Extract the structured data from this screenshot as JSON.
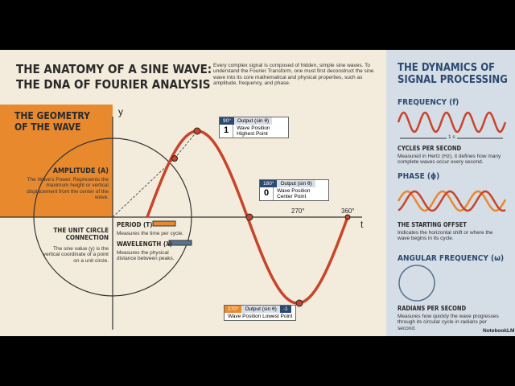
{
  "header": {
    "title_lines": [
      "THE ANATOMY OF A SINE WAVE:",
      "THE DNA OF FOURIER ANALYSIS"
    ],
    "intro": "Every complex signal is composed of hidden, simple sine waves. To understand the Fourier Transform, one must first deconstruct the sine wave into its core mathematical and physical properties, such as amplitude, frequency, and phase."
  },
  "geometry": {
    "title": "THE GEOMETRY OF THE WAVE",
    "axis_y": "y",
    "axis_t": "t",
    "amplitude": {
      "title": "AMPLITUDE (A)",
      "text": "The Wave's Power. Represents the maximum height or vertical displacement from the center of the wave."
    },
    "unit_circle": {
      "title": "THE UNIT CIRCLE CONNECTION",
      "text": "The sine value (y) is the vertical coordinate of a point on a unit circle."
    },
    "period": {
      "title": "PERIOD (T)",
      "text": "Measures the time per cycle."
    },
    "wavelength": {
      "title": "WAVELENGTH (λ)",
      "text": "Measures the physical distance between peaks."
    },
    "callouts": [
      {
        "angle": "90°",
        "header": "Output (sin θ)",
        "value": "1",
        "text": "Wave Position Highest Point"
      },
      {
        "angle": "180°",
        "header": "Output (sin θ)",
        "value": "0",
        "text": "Wave Position Center Point"
      },
      {
        "angle": "270°",
        "header": "Output (sin θ)",
        "value": "-1",
        "text": "Wave Position Lowest Point"
      }
    ],
    "angle_labels": [
      "270°",
      "360°"
    ]
  },
  "dynamics": {
    "title": "THE DYNAMICS OF SIGNAL PROCESSING",
    "frequency": {
      "title": "FREQUENCY (f)",
      "scale": "1 s",
      "subtitle": "CYCLES PER SECOND",
      "text": "Measured in Hertz (Hz), it defines how many complete waves occur every second."
    },
    "phase": {
      "title": "PHASE (ϕ)",
      "subtitle": "THE STARTING OFFSET",
      "text": "Indicates the horizontal shift or where the wave begins in its cycle."
    },
    "angular": {
      "title": "ANGULAR FREQUENCY (ω)",
      "subtitle": "RADIANS PER SECOND",
      "text": "Measures how quickly the wave progresses through its circular cycle in radians per second."
    }
  },
  "footer": "NotebookLM"
}
